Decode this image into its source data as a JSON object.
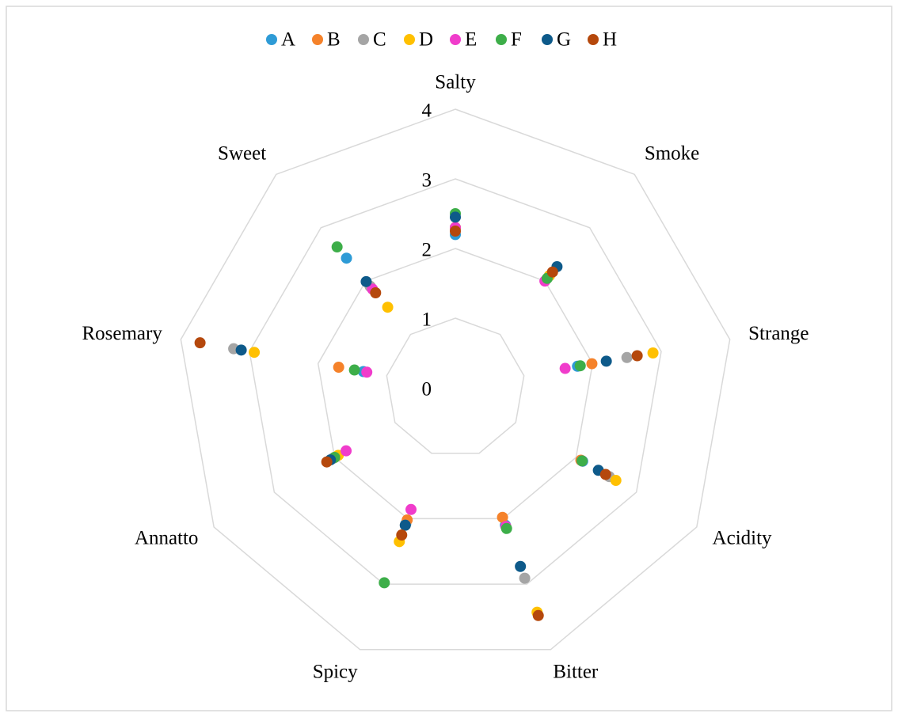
{
  "chart_data": {
    "type": "radar",
    "categories": [
      "Salty",
      "Smoke",
      "Strange",
      "Acidity",
      "Bitter",
      "Spicy",
      "Annatto",
      "Rosemary",
      "Sweet"
    ],
    "series": [
      {
        "name": "A",
        "color": "#2e9bd6",
        "values": [
          2.2,
          2.1,
          1.78,
          2.11,
          2.1,
          2.08,
          2.03,
          1.34,
          2.43
        ]
      },
      {
        "name": "B",
        "color": "#f5822a",
        "values": [
          2.3,
          2.1,
          1.99,
          2.08,
          1.98,
          2.02,
          2.0,
          1.7,
          1.9
        ]
      },
      {
        "name": "C",
        "color": "#a5a5a5",
        "values": [
          2.3,
          2.1,
          2.5,
          2.55,
          2.91,
          2.1,
          2.03,
          3.23,
          1.9
        ]
      },
      {
        "name": "D",
        "color": "#ffc000",
        "values": [
          2.3,
          2.1,
          2.88,
          2.66,
          3.43,
          2.35,
          1.94,
          2.93,
          1.51
        ]
      },
      {
        "name": "E",
        "color": "#f03ccb",
        "values": [
          2.3,
          2.0,
          1.6,
          2.1,
          2.12,
          1.86,
          1.81,
          1.29,
          1.85
        ]
      },
      {
        "name": "F",
        "color": "#3dae49",
        "values": [
          2.5,
          2.05,
          1.82,
          2.1,
          2.15,
          2.98,
          2.0,
          1.47,
          2.64
        ]
      },
      {
        "name": "G",
        "color": "#0e5a8a",
        "values": [
          2.45,
          2.27,
          2.2,
          2.37,
          2.73,
          2.1,
          2.07,
          3.12,
          1.99
        ]
      },
      {
        "name": "H",
        "color": "#b5480c",
        "values": [
          2.25,
          2.17,
          2.65,
          2.49,
          3.48,
          2.25,
          2.13,
          3.72,
          1.78
        ]
      }
    ],
    "ylim": [
      0,
      4
    ],
    "yticks": [
      0,
      1,
      2,
      3,
      4
    ],
    "grid": true,
    "legend": "top"
  }
}
